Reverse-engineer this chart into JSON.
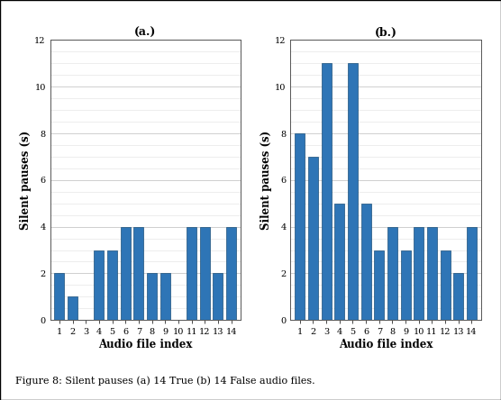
{
  "title_a": "(a.)",
  "title_b": "(b.)",
  "xlabel": "Audio file index",
  "ylabel": "Silent pauses (s)",
  "categories": [
    1,
    2,
    3,
    4,
    5,
    6,
    7,
    8,
    9,
    10,
    11,
    12,
    13,
    14
  ],
  "values_a": [
    2,
    1,
    0,
    3,
    3,
    4,
    4,
    2,
    2,
    0,
    4,
    4,
    2,
    4
  ],
  "values_b": [
    8,
    7,
    11,
    5,
    11,
    5,
    3,
    4,
    3,
    4,
    4,
    3,
    2,
    4
  ],
  "bar_color": "#2E75B6",
  "bar_edge_color": "#1a4f7a",
  "ylim": [
    0,
    12
  ],
  "yticks": [
    0,
    2,
    4,
    6,
    8,
    10,
    12
  ],
  "bg_color": "#ffffff",
  "grid_color": "#c8c8c8",
  "minor_grid_color": "#e0e0e0",
  "caption": "Figure 8: Silent pauses (a) 14 True (b) 14 False audio files.",
  "title_fontsize": 9,
  "label_fontsize": 8.5,
  "tick_fontsize": 7,
  "caption_fontsize": 8
}
